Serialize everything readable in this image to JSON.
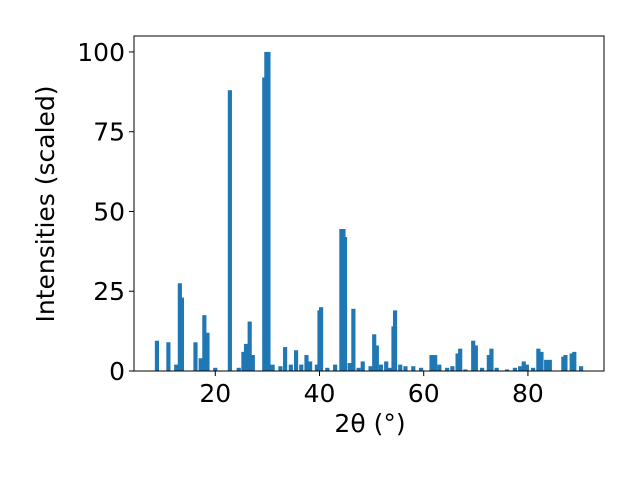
{
  "chart_data": {
    "type": "bar",
    "xlabel": "2θ (°)",
    "ylabel": "Intensities (scaled)",
    "color": "#1f77b4",
    "x": [
      8.8,
      11.0,
      12.5,
      13.2,
      13.6,
      16.2,
      17.2,
      17.9,
      18.5,
      20.0,
      22.8,
      24.5,
      25.4,
      25.9,
      26.6,
      27.2,
      29.4,
      29.8,
      30.2,
      31.0,
      32.5,
      33.4,
      34.5,
      35.5,
      36.5,
      37.5,
      38.2,
      39.5,
      40.0,
      40.3,
      41.5,
      43.0,
      44.2,
      44.6,
      44.9,
      45.8,
      46.5,
      47.5,
      48.3,
      49.8,
      50.5,
      51.0,
      51.8,
      52.8,
      53.5,
      54.2,
      54.5,
      55.5,
      56.5,
      58.0,
      59.5,
      61.5,
      62.2,
      63.0,
      64.5,
      65.5,
      66.5,
      67.0,
      68.0,
      69.5,
      70.0,
      71.2,
      72.5,
      73.0,
      74.0,
      76.0,
      77.5,
      78.5,
      79.2,
      79.8,
      81.0,
      82.0,
      82.6,
      83.5,
      84.2,
      86.8,
      87.2,
      88.4,
      88.9,
      90.2
    ],
    "values": [
      9.5,
      9,
      2,
      27.5,
      23,
      9,
      4,
      17.5,
      12,
      1,
      88,
      1,
      6,
      8.5,
      15.5,
      5,
      92,
      100,
      100,
      2,
      1.5,
      7.5,
      2,
      6.5,
      2,
      5,
      3,
      2,
      19,
      20,
      1,
      2,
      44.5,
      44.5,
      42,
      2.5,
      19.5,
      1,
      3,
      1.5,
      11.5,
      8,
      2,
      3,
      1,
      14,
      19,
      2,
      1.5,
      1.5,
      1,
      5,
      5,
      2,
      1,
      1.5,
      5.5,
      7,
      0.5,
      9.5,
      8,
      1,
      5,
      7,
      1,
      0.5,
      1,
      1.5,
      3,
      2,
      1,
      7,
      6,
      3.5,
      3.5,
      4.5,
      5,
      5.5,
      6,
      1.5
    ],
    "xlim": [
      4.4,
      94.6
    ],
    "ylim": [
      0,
      105
    ],
    "xticks": [
      20,
      40,
      60,
      80
    ],
    "yticks": [
      0,
      25,
      50,
      75,
      100
    ]
  }
}
